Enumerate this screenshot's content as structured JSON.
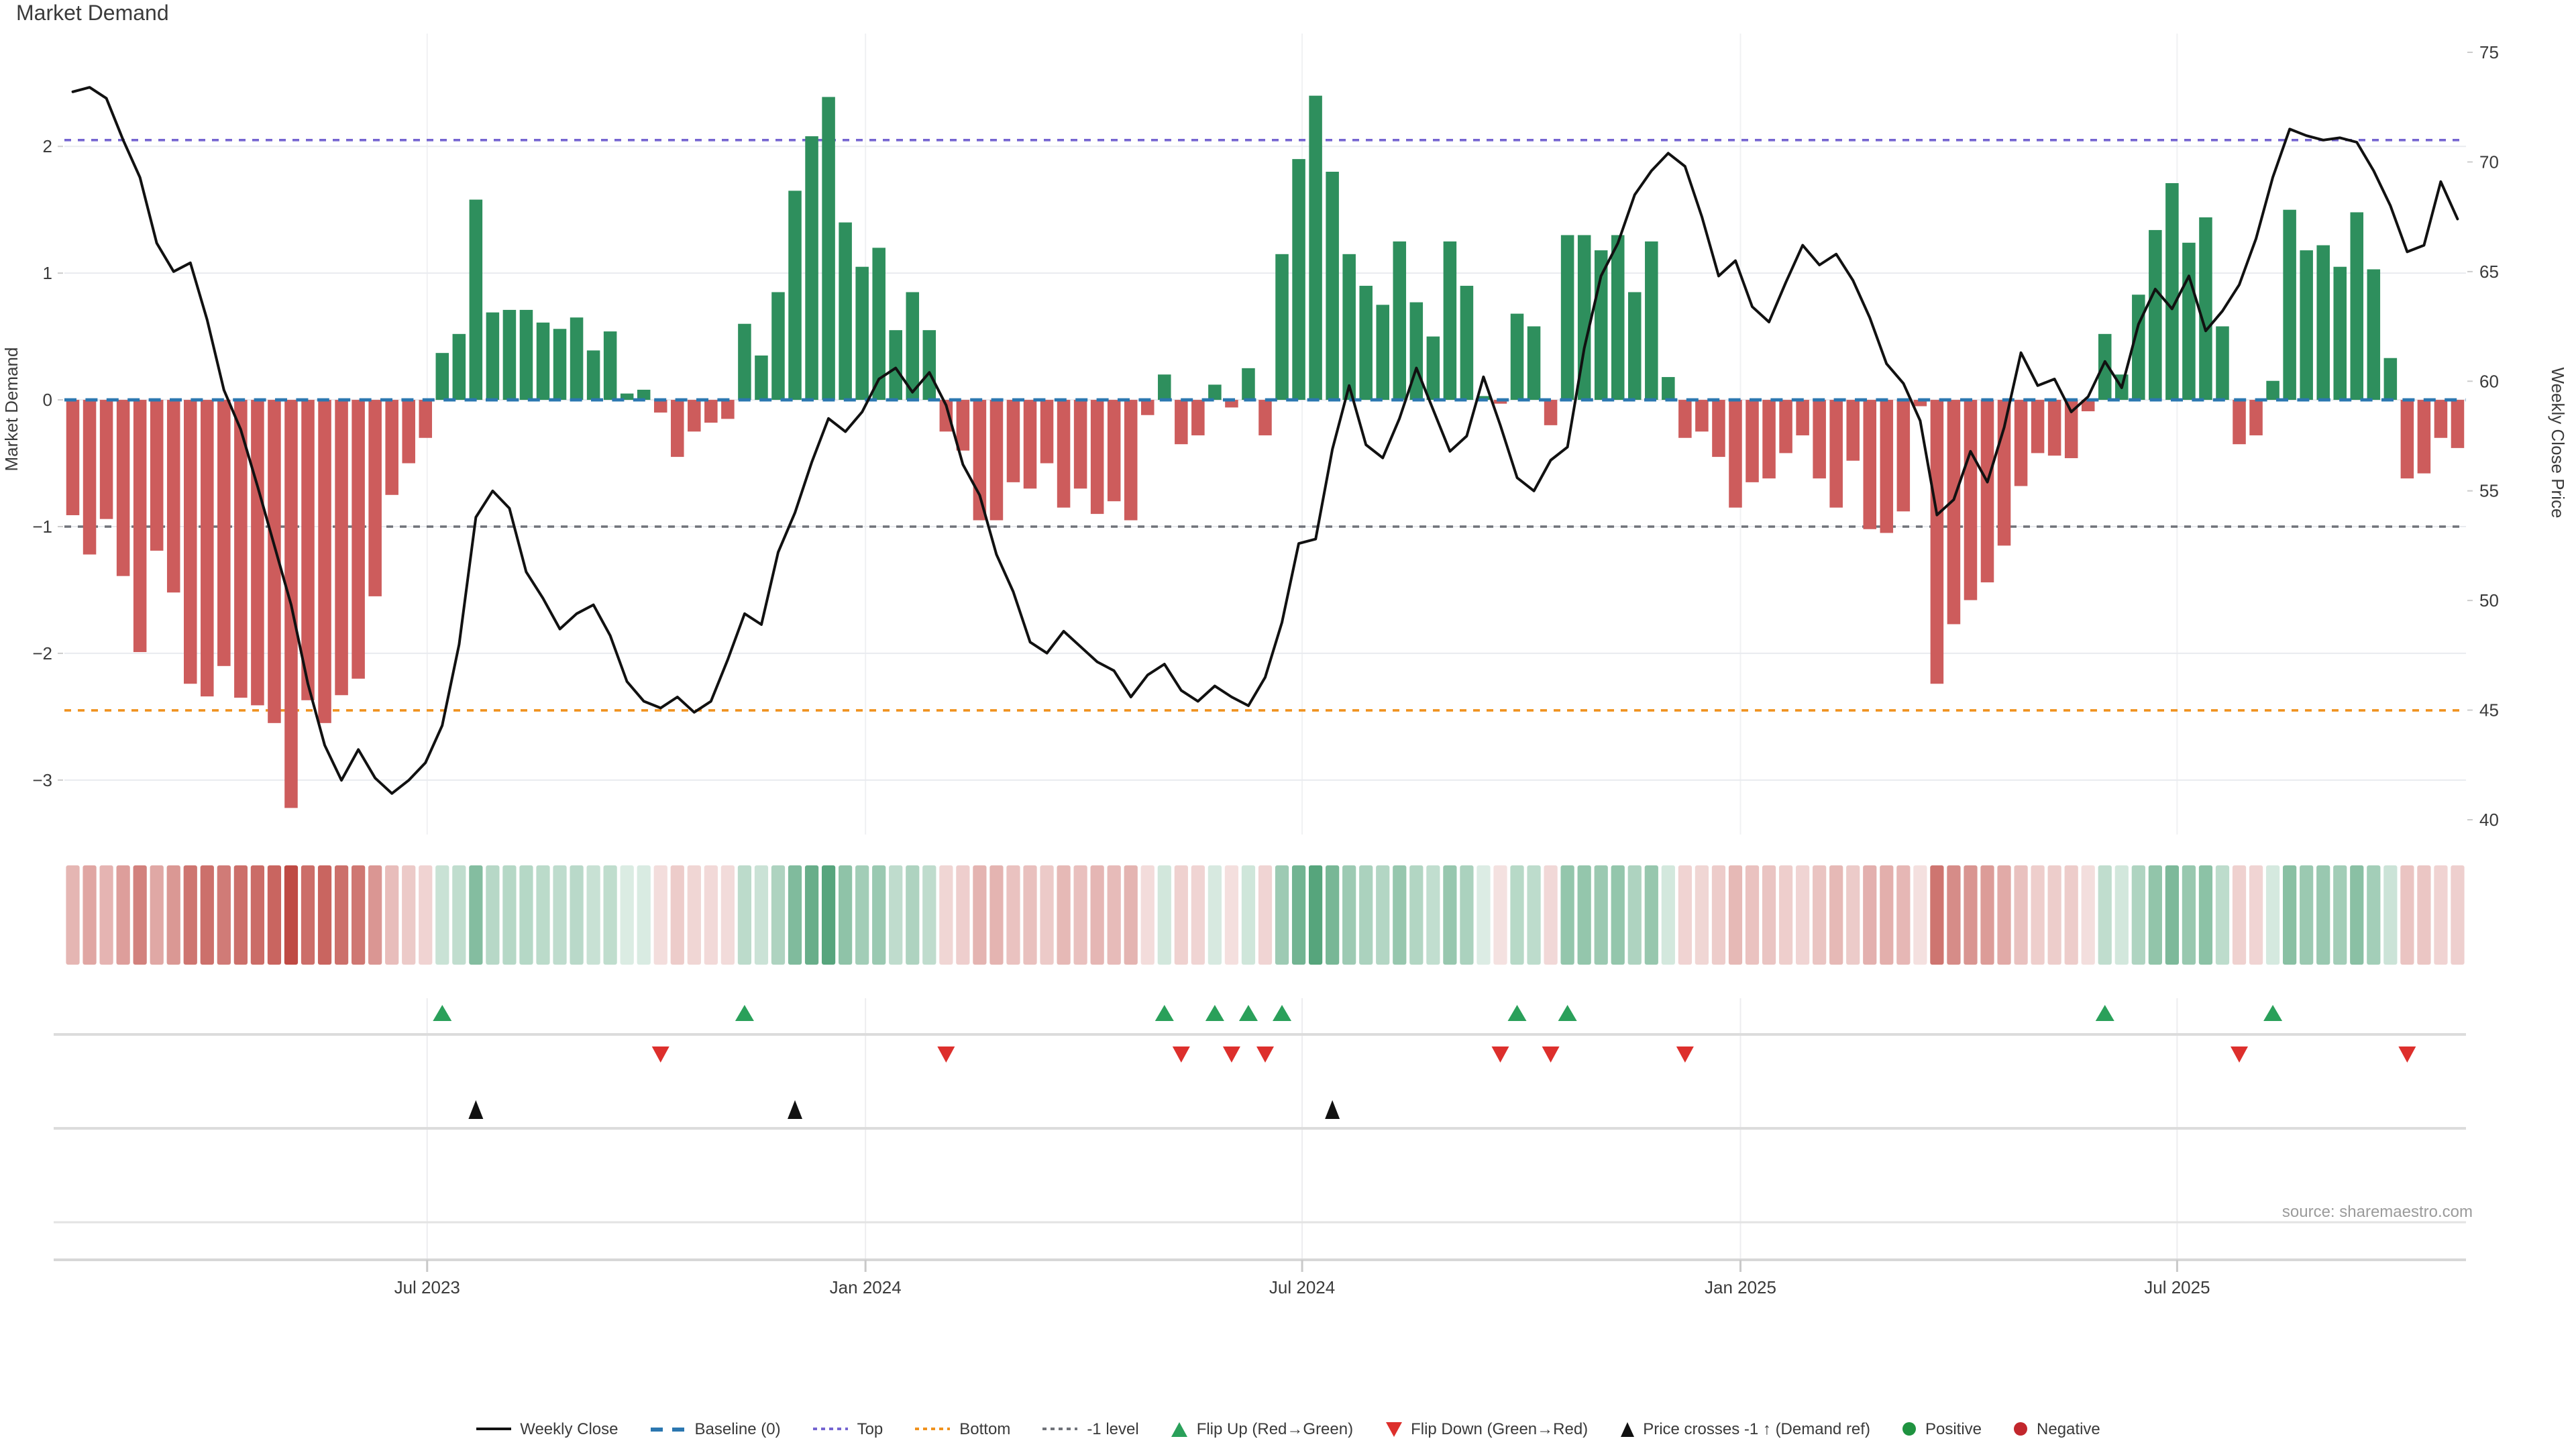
{
  "title": "Market Demand",
  "source": "source: sharemaestro.com",
  "axes": {
    "left": {
      "label": "Market Demand",
      "ticks": [
        2,
        1,
        0,
        -1,
        -2,
        -3
      ]
    },
    "right": {
      "label": "Weekly Close Price",
      "ticks": [
        75,
        70,
        65,
        60,
        55,
        50,
        45,
        40
      ]
    }
  },
  "x_ticks": [
    {
      "label": "Jul 2023",
      "week": 21.1
    },
    {
      "label": "Jan 2024",
      "week": 47.2
    },
    {
      "label": "Jul 2024",
      "week": 73.2
    },
    {
      "label": "Jan 2025",
      "week": 99.3
    },
    {
      "label": "Jul 2025",
      "week": 125.3
    }
  ],
  "ref_lines": {
    "baseline": {
      "label": "Baseline (0)",
      "value": 0,
      "color": "#2b77b0"
    },
    "top": {
      "label": "Top",
      "value": 2.05,
      "color": "#7565d1"
    },
    "bottom": {
      "label": "Bottom",
      "value": -2.45,
      "color": "#f0921e"
    },
    "minus_one": {
      "label": "-1 level",
      "value": -1,
      "color": "#70737a"
    }
  },
  "legend": [
    {
      "id": "weekly-close",
      "label": "Weekly Close",
      "swatch": "line-black"
    },
    {
      "id": "baseline",
      "label": "Baseline (0)",
      "swatch": "dash-blue"
    },
    {
      "id": "top",
      "label": "Top",
      "swatch": "dot-purple"
    },
    {
      "id": "bottom",
      "label": "Bottom",
      "swatch": "dot-orange"
    },
    {
      "id": "minus-one",
      "label": "-1 level",
      "swatch": "dot-gray"
    },
    {
      "id": "flip-up",
      "label": "Flip Up (Red→Green)",
      "swatch": "tri-up-green"
    },
    {
      "id": "flip-down",
      "label": "Flip Down (Green→Red)",
      "swatch": "tri-down-red"
    },
    {
      "id": "price-cross",
      "label": "Price crosses -1 ↑ (Demand ref)",
      "swatch": "tri-up-black"
    },
    {
      "id": "positive",
      "label": "Positive",
      "swatch": "dot-green"
    },
    {
      "id": "negative",
      "label": "Negative",
      "swatch": "dot-red"
    }
  ],
  "colors": {
    "positive_bar": "#2e8f5d",
    "negative_bar": "#cd5c5c",
    "heat_positive": "#2e8f5d",
    "heat_negative": "#bf4a44",
    "price_line": "#111111",
    "baseline": "#2b77b0",
    "top": "#7565d1",
    "bottom": "#f0921e",
    "minus_one": "#70737a",
    "marker_up": "#2aa05a",
    "marker_down": "#dd2f2c",
    "marker_cross": "#111111",
    "grid": "#e9ebef",
    "grid_vertical": "#f0f1f3",
    "axis_text": "#3b3b3b",
    "muted_text": "#9b9b9b"
  },
  "chart_data": {
    "type": "bar+line",
    "x_unit": "weekly",
    "x_range": [
      "Feb 2023",
      "Nov 2025"
    ],
    "weeks": 143,
    "y_left_label": "Market Demand",
    "y_right_label": "Weekly Close Price",
    "y_left_ticks": [
      2,
      1,
      0,
      -1,
      -2,
      -3
    ],
    "y_right_range": [
      39.3,
      75.9
    ],
    "demand_to_price_map": {
      "demand_zero_price": 59.15,
      "price_per_demand_unit": 5.78
    },
    "demand_ref_cross_price": 53.4,
    "reference_levels": {
      "baseline": 0,
      "top": 2.05,
      "bottom": -2.45,
      "minus_one": -1
    },
    "series": [
      {
        "name": "Market Demand",
        "type": "bar",
        "values": [
          -0.91,
          -1.22,
          -0.94,
          -1.39,
          -1.99,
          -1.19,
          -1.52,
          -2.24,
          -2.34,
          -2.1,
          -2.35,
          -2.41,
          -2.55,
          -3.22,
          -2.37,
          -2.55,
          -2.33,
          -2.2,
          -1.55,
          -0.75,
          -0.5,
          -0.3,
          0.37,
          0.52,
          1.58,
          0.69,
          0.71,
          0.71,
          0.61,
          0.56,
          0.65,
          0.39,
          0.54,
          0.05,
          0.08,
          -0.1,
          -0.45,
          -0.25,
          -0.18,
          -0.15,
          0.6,
          0.35,
          0.85,
          1.65,
          2.08,
          2.39,
          1.4,
          1.05,
          1.2,
          0.55,
          0.85,
          0.55,
          -0.25,
          -0.4,
          -0.95,
          -0.95,
          -0.65,
          -0.7,
          -0.5,
          -0.85,
          -0.7,
          -0.9,
          -0.8,
          -0.95,
          -0.12,
          0.2,
          -0.35,
          -0.28,
          0.12,
          -0.06,
          0.25,
          -0.28,
          1.15,
          1.9,
          2.4,
          1.8,
          1.15,
          0.9,
          0.75,
          1.25,
          0.77,
          0.5,
          1.25,
          0.9,
          0.03,
          -0.03,
          0.68,
          0.58,
          -0.2,
          1.3,
          1.3,
          1.18,
          1.3,
          0.85,
          1.25,
          0.18,
          -0.3,
          -0.25,
          -0.45,
          -0.85,
          -0.65,
          -0.62,
          -0.42,
          -0.28,
          -0.62,
          -0.85,
          -0.48,
          -1.02,
          -1.05,
          -0.88,
          -0.05,
          -2.24,
          -1.77,
          -1.58,
          -1.44,
          -1.15,
          -0.68,
          -0.42,
          -0.44,
          -0.46,
          -0.09,
          0.52,
          0.2,
          0.83,
          1.34,
          1.71,
          1.24,
          1.44,
          0.58,
          -0.35,
          -0.28,
          0.15,
          1.5,
          1.18,
          1.22,
          1.05,
          1.48,
          1.03,
          0.33,
          -0.62,
          -0.58,
          -0.3,
          -0.38
        ]
      },
      {
        "name": "Weekly Close",
        "type": "line",
        "values": [
          73.2,
          73.4,
          72.9,
          71.0,
          69.3,
          66.3,
          65.0,
          65.4,
          62.8,
          59.6,
          57.8,
          55.2,
          52.5,
          49.8,
          46.2,
          43.4,
          41.8,
          43.2,
          41.9,
          41.2,
          41.8,
          42.6,
          44.3,
          48.0,
          53.8,
          55.0,
          54.2,
          51.3,
          50.1,
          48.7,
          49.4,
          49.8,
          48.4,
          46.3,
          45.4,
          45.1,
          45.6,
          44.9,
          45.4,
          47.3,
          49.4,
          48.9,
          52.2,
          54.0,
          56.3,
          58.3,
          57.7,
          58.6,
          60.1,
          60.6,
          59.5,
          60.4,
          58.9,
          56.2,
          54.8,
          52.1,
          50.4,
          48.1,
          47.6,
          48.6,
          47.9,
          47.2,
          46.8,
          45.6,
          46.6,
          47.1,
          45.9,
          45.4,
          46.1,
          45.6,
          45.2,
          46.5,
          49.0,
          52.6,
          52.8,
          56.9,
          59.8,
          57.1,
          56.5,
          58.3,
          60.6,
          58.7,
          56.8,
          57.5,
          60.2,
          58.0,
          55.6,
          55.0,
          56.4,
          57.0,
          61.5,
          64.8,
          66.3,
          68.5,
          69.6,
          70.4,
          69.8,
          67.5,
          64.8,
          65.5,
          63.4,
          62.7,
          64.5,
          66.2,
          65.3,
          65.8,
          64.6,
          62.9,
          60.8,
          59.9,
          58.2,
          53.9,
          54.6,
          56.8,
          55.4,
          57.9,
          61.3,
          59.8,
          60.1,
          58.6,
          59.3,
          60.9,
          59.7,
          62.6,
          64.2,
          63.3,
          64.8,
          62.3,
          63.2,
          64.4,
          66.5,
          69.3,
          71.5,
          71.2,
          71.0,
          71.1,
          70.9,
          69.6,
          68.0,
          65.9,
          66.2,
          69.1,
          67.4
        ]
      }
    ],
    "heatmap": "strip below main chart encodes weekly Market Demand intensity (red negative, green positive)",
    "marker_rows": [
      "Flip Up (Red→Green)",
      "Flip Down (Green→Red)",
      "Price crosses -1 ↑ (Demand ref)"
    ],
    "legend_position": "bottom-center",
    "grid": true
  }
}
